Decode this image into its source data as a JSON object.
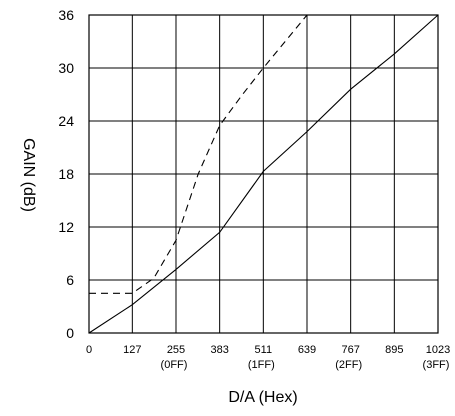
{
  "chart_data": {
    "type": "line",
    "title": "",
    "xlabel": "D/A (Hex)",
    "ylabel": "GAIN (dB)",
    "xlim": [
      0,
      1023
    ],
    "ylim": [
      0,
      36
    ],
    "grid": true,
    "x_ticks": [
      0,
      127,
      255,
      383,
      511,
      639,
      767,
      895,
      1023
    ],
    "x_tick_labels": [
      "0",
      "127",
      "255",
      "383",
      "511",
      "639",
      "767",
      "895",
      "1023"
    ],
    "x_tick_sublabels": {
      "255": "(0FF)",
      "511": "(1FF)",
      "767": "(2FF)",
      "1023": "(3FF)"
    },
    "y_ticks": [
      0,
      6,
      12,
      18,
      24,
      30,
      36
    ],
    "y_tick_labels": [
      "0",
      "6",
      "12",
      "18",
      "24",
      "30",
      "36"
    ],
    "series": [
      {
        "style": "solid",
        "color": "#000000",
        "points": [
          [
            0,
            0
          ],
          [
            127,
            3.2
          ],
          [
            255,
            7.2
          ],
          [
            383,
            11.4
          ],
          [
            511,
            18.3
          ],
          [
            639,
            22.8
          ],
          [
            767,
            27.6
          ],
          [
            895,
            31.6
          ],
          [
            1023,
            36
          ]
        ]
      },
      {
        "style": "dashed",
        "color": "#000000",
        "points": [
          [
            0,
            4.5
          ],
          [
            127,
            4.5
          ],
          [
            190,
            6.2
          ],
          [
            255,
            10.5
          ],
          [
            320,
            18
          ],
          [
            383,
            23.5
          ],
          [
            450,
            27
          ],
          [
            511,
            30
          ],
          [
            639,
            36
          ]
        ]
      }
    ]
  }
}
